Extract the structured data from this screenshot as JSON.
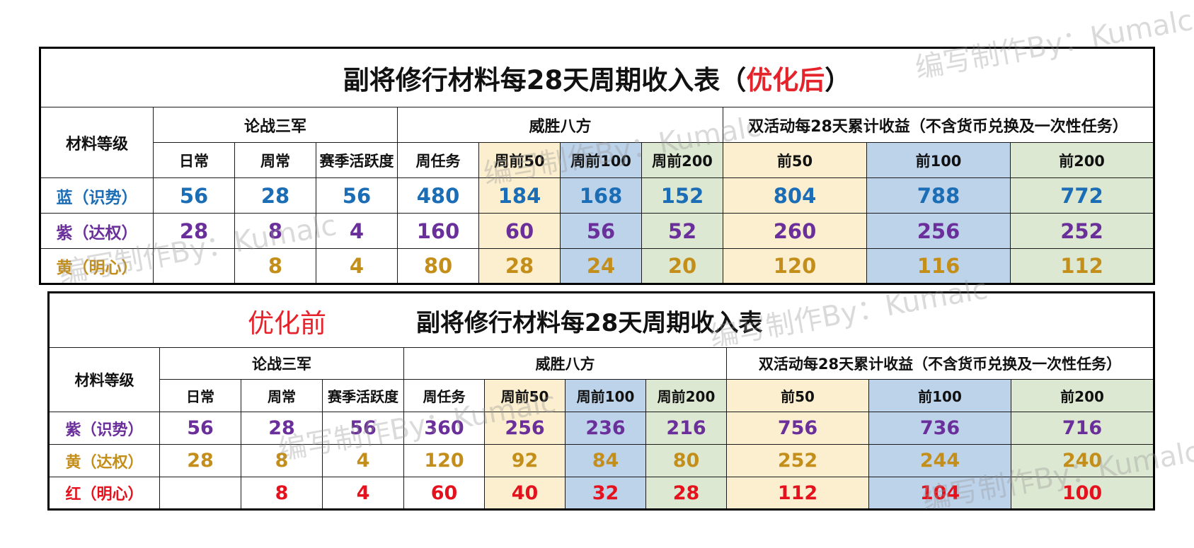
{
  "watermark": "编写制作By：Kumalc",
  "after": {
    "title_main": "副将修行材料每28天周期收入表（",
    "title_red": "优化后",
    "title_close": "）",
    "material_level": "材料等级",
    "group_lunzhan": "论战三军",
    "group_weisheng": "威胜八方",
    "group_double": "双活动每28天累计收益（不含货币兑换及一次性任务）",
    "sub": [
      "日常",
      "周常",
      "赛季活跃度",
      "周任务",
      "周前50",
      "周前100",
      "周前200",
      "前50",
      "前100",
      "前200"
    ],
    "rows": [
      {
        "label": "蓝（识势）",
        "vals": [
          "56",
          "28",
          "56",
          "480",
          "184",
          "168",
          "152",
          "804",
          "788",
          "772"
        ]
      },
      {
        "label": "紫（达权）",
        "vals": [
          "28",
          "8",
          "4",
          "160",
          "60",
          "56",
          "52",
          "260",
          "256",
          "252"
        ]
      },
      {
        "label": "黄（明心）",
        "vals": [
          "",
          "8",
          "4",
          "80",
          "28",
          "24",
          "20",
          "120",
          "116",
          "112"
        ]
      }
    ]
  },
  "before": {
    "title_red": "优化前",
    "title_main": "副将修行材料每28天周期收入表",
    "material_level": "材料等级",
    "group_lunzhan": "论战三军",
    "group_weisheng": "威胜八方",
    "group_double": "双活动每28天累计收益（不含货币兑换及一次性任务）",
    "sub": [
      "日常",
      "周常",
      "赛季活跃度",
      "周任务",
      "周前50",
      "周前100",
      "周前200",
      "前50",
      "前100",
      "前200"
    ],
    "rows": [
      {
        "label": "紫（识势）",
        "vals": [
          "56",
          "28",
          "56",
          "360",
          "256",
          "236",
          "216",
          "756",
          "736",
          "716"
        ]
      },
      {
        "label": "黄（达权）",
        "vals": [
          "28",
          "8",
          "4",
          "120",
          "92",
          "84",
          "80",
          "252",
          "244",
          "240"
        ]
      },
      {
        "label": "红（明心）",
        "vals": [
          "",
          "8",
          "4",
          "60",
          "40",
          "32",
          "28",
          "112",
          "104",
          "100"
        ]
      }
    ]
  }
}
